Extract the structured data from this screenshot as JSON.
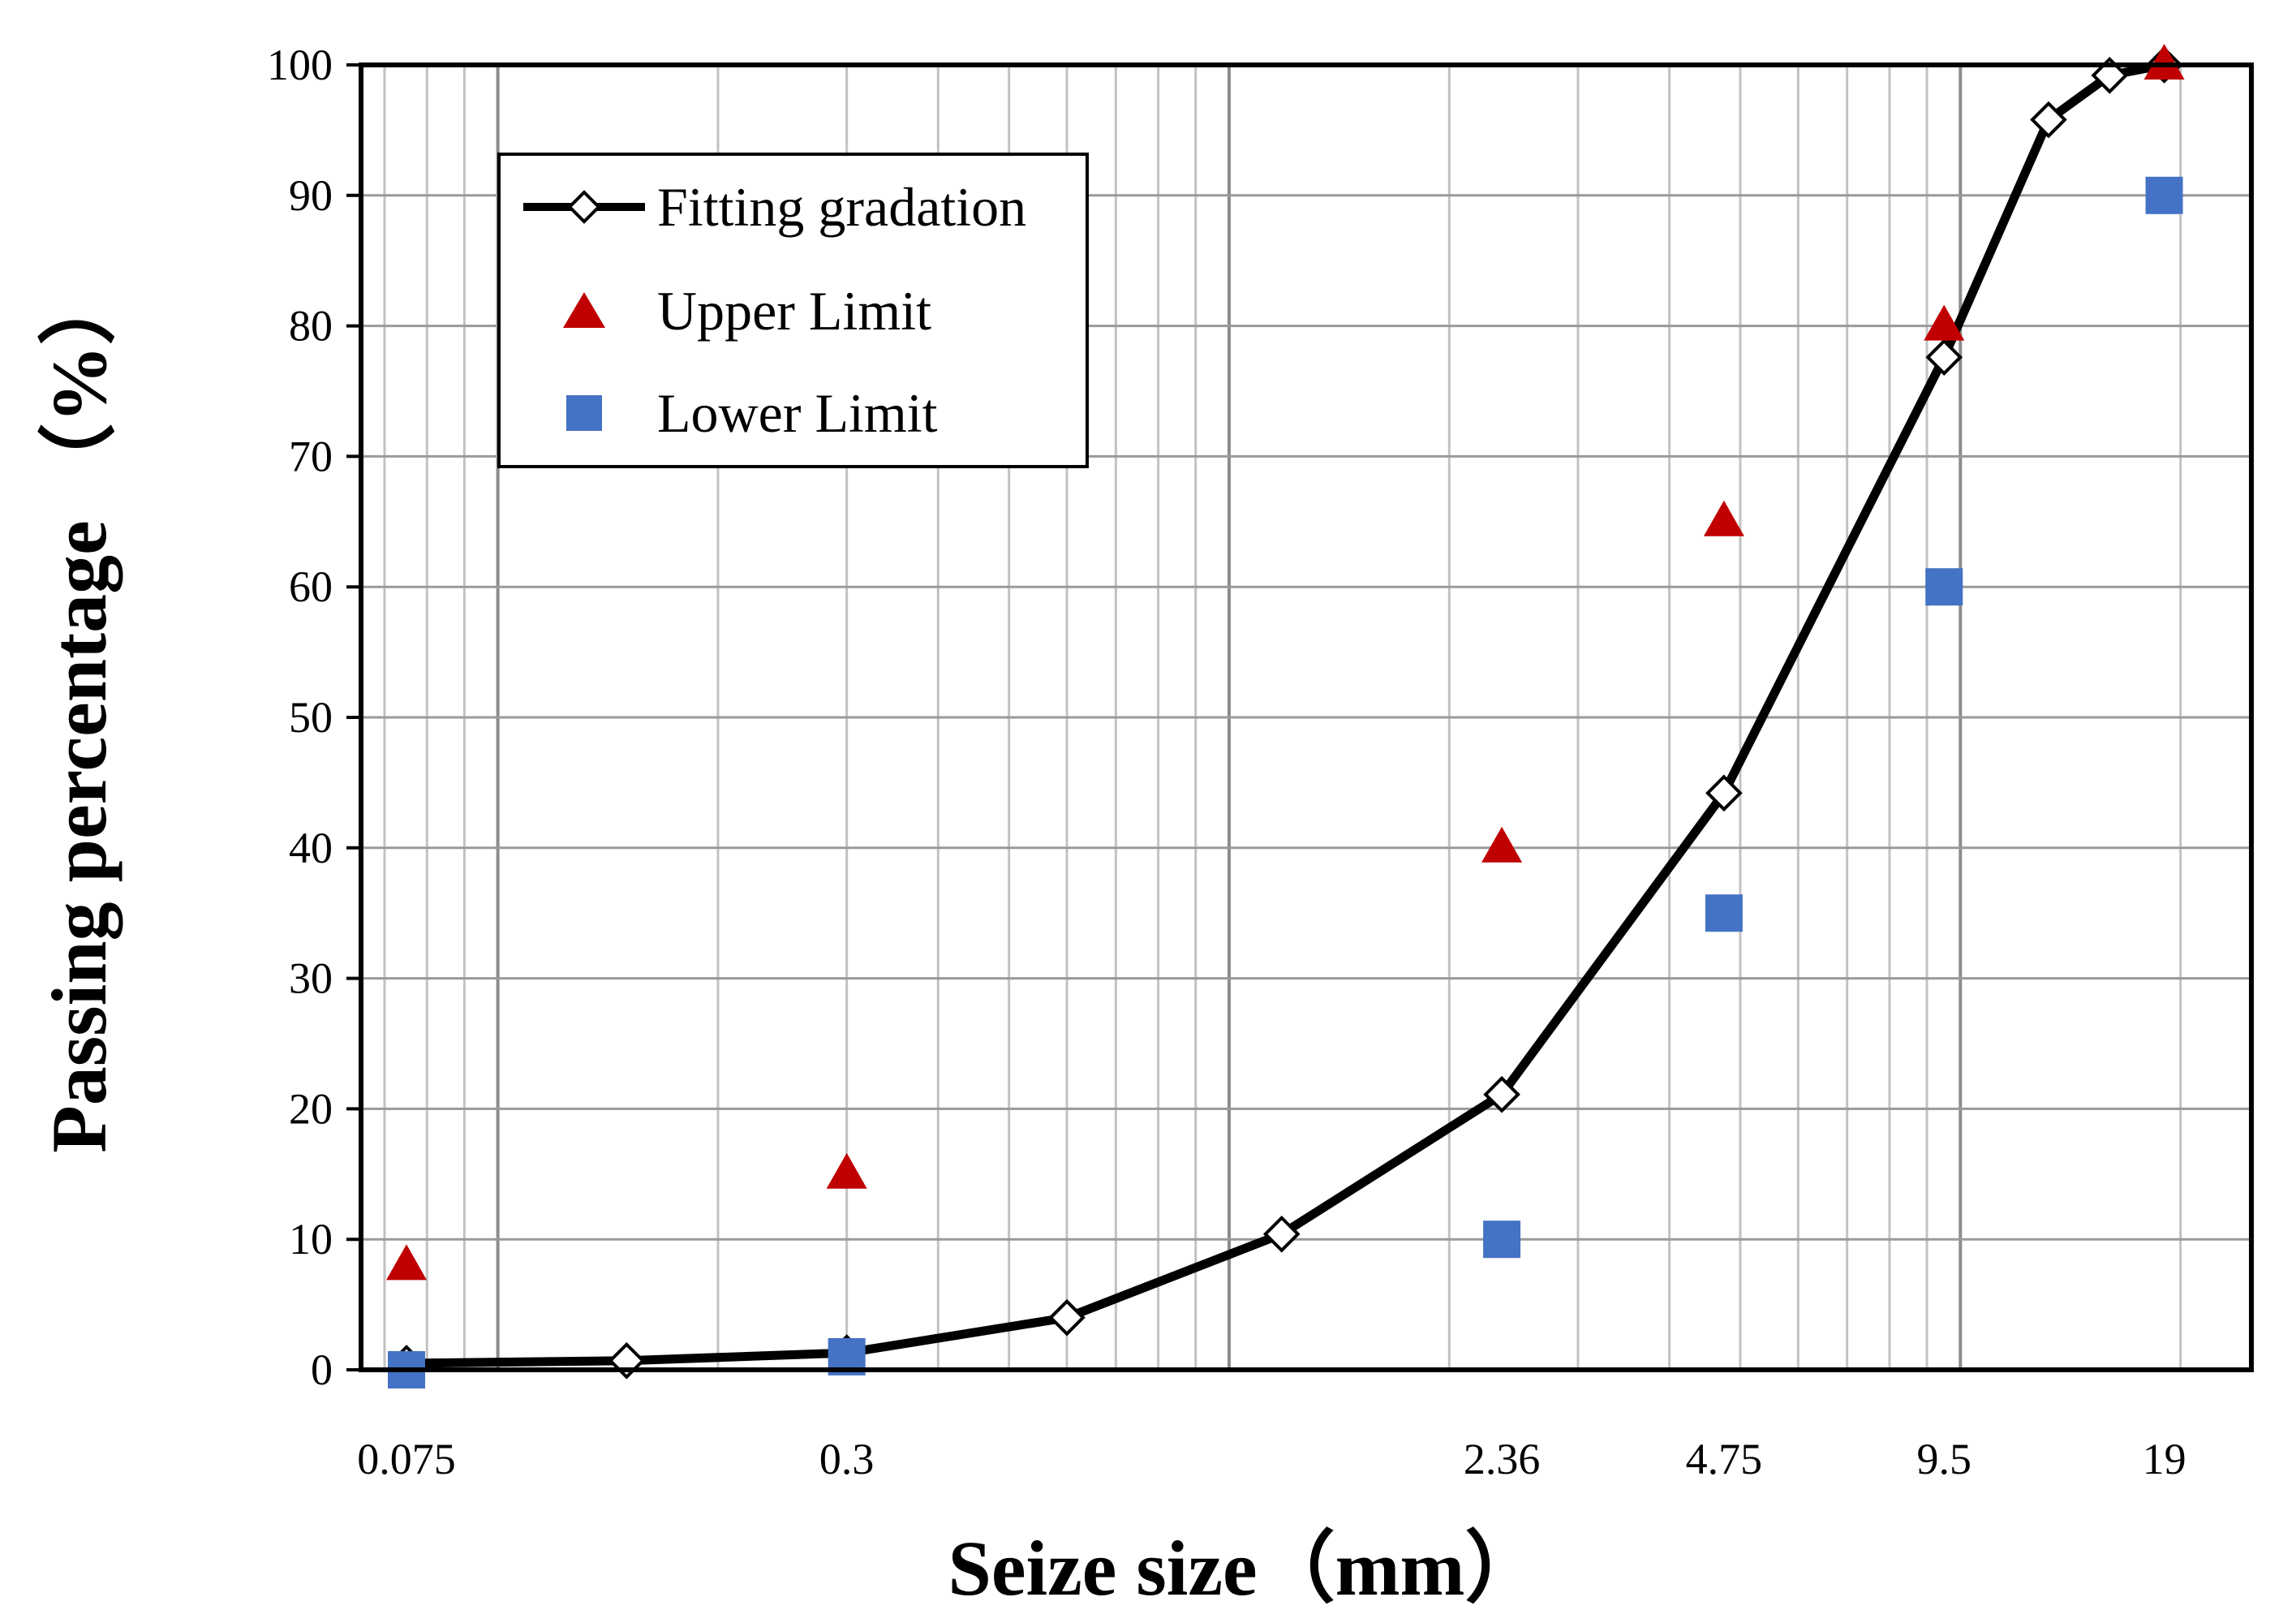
{
  "chart_data": {
    "type": "line",
    "title": "",
    "xlabel": "Seize size（mm）",
    "ylabel": "Passing percentage （%）",
    "xscale": "log",
    "xlim": [
      0.065,
      25
    ],
    "ylim": [
      0,
      100
    ],
    "grid": true,
    "x_tick_labels": [
      "0.075",
      "0.3",
      "2.36",
      "4.75",
      "9.5",
      "19"
    ],
    "y_tick_labels": [
      "0",
      "10",
      "20",
      "30",
      "40",
      "50",
      "60",
      "70",
      "80",
      "90",
      "100"
    ],
    "legend_position": "top-left",
    "series": [
      {
        "name": "Fitting gradation",
        "marker": "diamond-open",
        "color": "#000000",
        "x": [
          0.075,
          0.15,
          0.3,
          0.6,
          1.18,
          2.36,
          4.75,
          9.5,
          13.2,
          16,
          19
        ],
        "y": [
          0.5,
          0.7,
          1.3,
          4,
          10.4,
          21.1,
          44.2,
          77.6,
          95.8,
          99.2,
          100
        ]
      },
      {
        "name": "Upper Limit",
        "marker": "triangle",
        "color": "#c00000",
        "x": [
          0.075,
          0.3,
          2.36,
          4.75,
          9.5,
          19
        ],
        "y": [
          8,
          15,
          40,
          65,
          80,
          100
        ]
      },
      {
        "name": "Lower Limit",
        "marker": "square",
        "color": "#4472c4",
        "x": [
          0.075,
          0.3,
          2.36,
          4.75,
          9.5,
          19
        ],
        "y": [
          0,
          1,
          10,
          35,
          60,
          90
        ]
      }
    ]
  }
}
